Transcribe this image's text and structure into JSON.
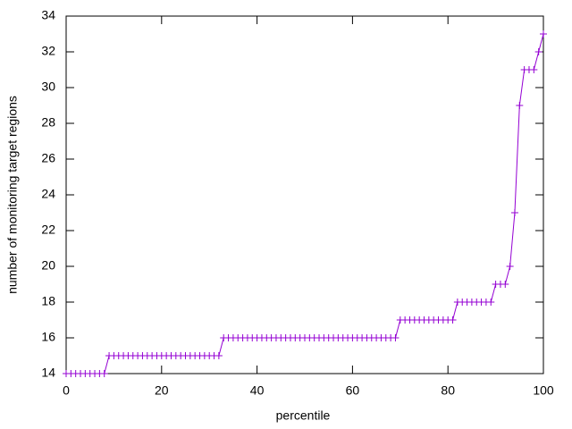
{
  "chart_data": {
    "type": "line",
    "xlabel": "percentile",
    "ylabel": "number of monitoring target regions",
    "x": [
      0,
      1,
      2,
      3,
      4,
      5,
      6,
      7,
      8,
      9,
      10,
      11,
      12,
      13,
      14,
      15,
      16,
      17,
      18,
      19,
      20,
      21,
      22,
      23,
      24,
      25,
      26,
      27,
      28,
      29,
      30,
      31,
      32,
      33,
      34,
      35,
      36,
      37,
      38,
      39,
      40,
      41,
      42,
      43,
      44,
      45,
      46,
      47,
      48,
      49,
      50,
      51,
      52,
      53,
      54,
      55,
      56,
      57,
      58,
      59,
      60,
      61,
      62,
      63,
      64,
      65,
      66,
      67,
      68,
      69,
      70,
      71,
      72,
      73,
      74,
      75,
      76,
      77,
      78,
      79,
      80,
      81,
      82,
      83,
      84,
      85,
      86,
      87,
      88,
      89,
      90,
      91,
      92,
      93,
      94,
      95,
      96,
      97,
      98,
      99,
      100
    ],
    "series": [
      {
        "color": "#9400d3",
        "marker": "+",
        "values": [
          14,
          14,
          14,
          14,
          14,
          14,
          14,
          14,
          14,
          15,
          15,
          15,
          15,
          15,
          15,
          15,
          15,
          15,
          15,
          15,
          15,
          15,
          15,
          15,
          15,
          15,
          15,
          15,
          15,
          15,
          15,
          15,
          15,
          16,
          16,
          16,
          16,
          16,
          16,
          16,
          16,
          16,
          16,
          16,
          16,
          16,
          16,
          16,
          16,
          16,
          16,
          16,
          16,
          16,
          16,
          16,
          16,
          16,
          16,
          16,
          16,
          16,
          16,
          16,
          16,
          16,
          16,
          16,
          16,
          16,
          17,
          17,
          17,
          17,
          17,
          17,
          17,
          17,
          17,
          17,
          17,
          17,
          18,
          18,
          18,
          18,
          18,
          18,
          18,
          18,
          19,
          19,
          19,
          20,
          23,
          29,
          31,
          31,
          31,
          32,
          33
        ]
      }
    ],
    "xlim": [
      0,
      100
    ],
    "xticks": [
      0,
      20,
      40,
      60,
      80,
      100
    ],
    "ylim": [
      14,
      34
    ],
    "yticks": [
      14,
      16,
      18,
      20,
      22,
      24,
      26,
      28,
      30,
      32,
      34
    ],
    "grid": false
  }
}
